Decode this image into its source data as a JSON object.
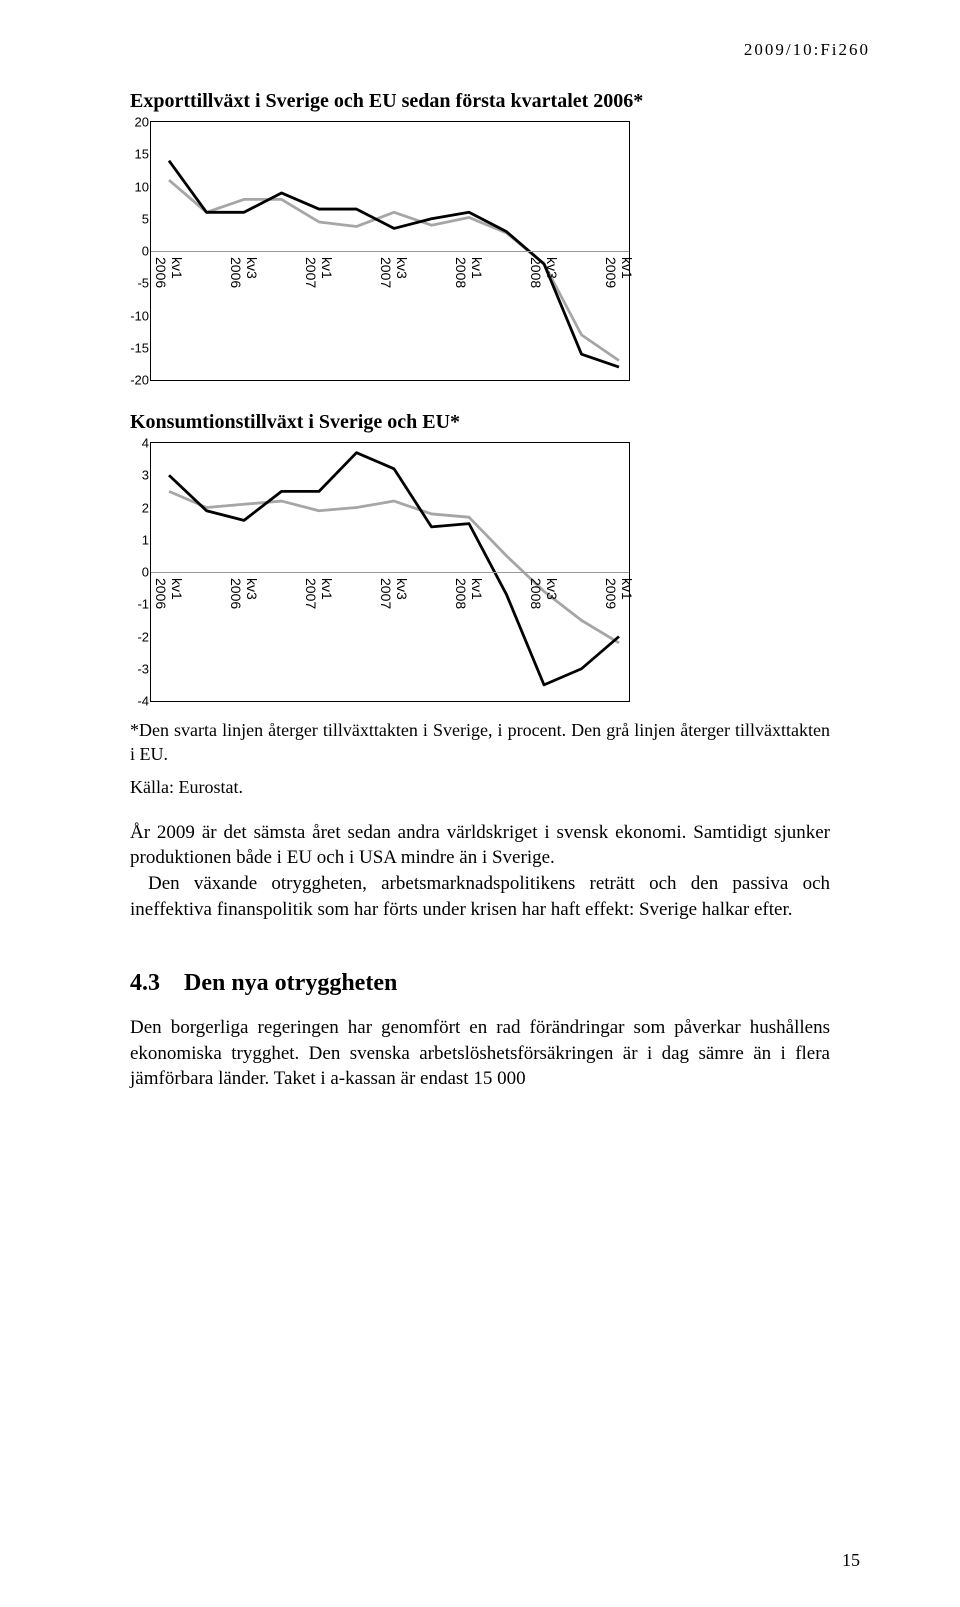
{
  "header_code": "2009/10:Fi260",
  "title1": "Exporttillväxt i Sverige och EU sedan första kvartalet 2006*",
  "title2": "Konsumtionstillväxt i Sverige och EU*",
  "chart1": {
    "type": "line",
    "categories": [
      "kv1 2006",
      "kv3 2006",
      "kv1 2007",
      "kv3 2007",
      "kv1 2008",
      "kv3 2008",
      "kv1 2009"
    ],
    "yticks": [
      20,
      15,
      10,
      5,
      0,
      -5,
      -10,
      -15,
      -20
    ],
    "ylim": [
      -20,
      20
    ],
    "baseline_y": 0,
    "series": [
      {
        "name": "Sverige",
        "color": "#000000",
        "width": 2.8,
        "values": [
          14,
          6,
          6,
          9,
          6.5,
          6.5,
          3.5,
          5,
          6,
          3,
          -2,
          -16,
          -18
        ]
      },
      {
        "name": "EU",
        "color": "#a6a6a6",
        "width": 2.8,
        "values": [
          11,
          6,
          8,
          8,
          4.5,
          3.8,
          6,
          4,
          5.2,
          2.8,
          -2,
          -13,
          -17
        ]
      }
    ],
    "font_family": "Arial",
    "tick_fontsize": 13,
    "background_color": "#ffffff",
    "border_color": "#000000"
  },
  "chart2": {
    "type": "line",
    "categories": [
      "kv1 2006",
      "kv3 2006",
      "kv1 2007",
      "kv3 2007",
      "kv1 2008",
      "kv3 2008",
      "kv1 2009"
    ],
    "yticks": [
      4,
      3,
      2,
      1,
      0,
      -1,
      -2,
      -3,
      -4
    ],
    "ylim": [
      -4,
      4
    ],
    "baseline_y": 0,
    "series": [
      {
        "name": "Sverige",
        "color": "#000000",
        "width": 2.8,
        "values": [
          3.0,
          1.9,
          1.6,
          2.5,
          2.5,
          3.7,
          3.2,
          1.4,
          1.5,
          -0.7,
          -3.5,
          -3.0,
          -2.0
        ]
      },
      {
        "name": "EU",
        "color": "#a6a6a6",
        "width": 2.8,
        "values": [
          2.5,
          2.0,
          2.1,
          2.2,
          1.9,
          2.0,
          2.2,
          1.8,
          1.7,
          0.5,
          -0.6,
          -1.5,
          -2.2
        ]
      }
    ],
    "font_family": "Arial",
    "tick_fontsize": 13,
    "background_color": "#ffffff",
    "border_color": "#000000"
  },
  "caption": "*Den svarta linjen återger tillväxttakten i Sverige, i procent. Den grå linjen återger tillväxttakten i EU.",
  "source": "Källa: Eurostat.",
  "para1": "År 2009 är det sämsta året sedan andra världskriget i svensk ekonomi. Samtidigt sjunker produktionen både i EU och i USA mindre än i Sverige.",
  "para2": "Den växande otryggheten, arbetsmarknadspolitikens reträtt och den passiva och ineffektiva finanspolitik som har förts under krisen har haft effekt: Sverige halkar efter.",
  "heading": "4.3 Den nya otryggheten",
  "para3": "Den borgerliga regeringen har genomfört en rad förändringar som påverkar hushållens ekonomiska trygghet. Den svenska arbetslöshetsförsäkringen är i dag sämre än i flera jämförbara länder. Taket i a-kassan är endast 15 000",
  "page_number": "15"
}
